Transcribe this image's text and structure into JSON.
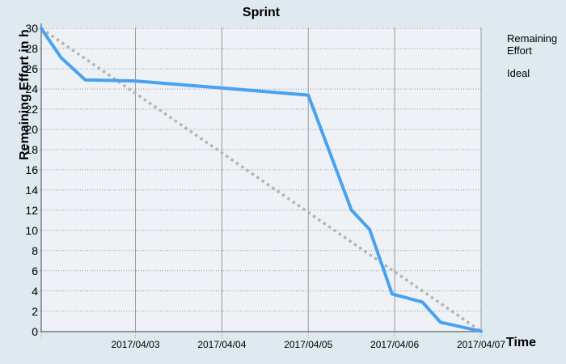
{
  "title": "Sprint",
  "colors": {
    "page_background": "#dee9f0",
    "plot_background": "#eef2f6",
    "remaining_line": "#48a2f0",
    "ideal_line": "#b4b4b4",
    "gridline": "#9a9a9a",
    "dotted_gridline": "#999999",
    "axis": "#7d7d7d",
    "text": "#000000"
  },
  "legend": {
    "position": "right",
    "items": [
      {
        "label": "Remaining Effort",
        "swatch": "solid-blue-line"
      },
      {
        "label": "Ideal",
        "swatch": "dotted-gray-line"
      }
    ]
  },
  "chart_data": {
    "type": "line",
    "title": "Sprint",
    "xlabel": "Time",
    "ylabel": "Remaining Effort in h",
    "grid": true,
    "legend_position": "right",
    "ylim": [
      0,
      30
    ],
    "y_tick_step": 2,
    "x_unit": "day of April 2017 (fractional; 3 = 2017/04/03 00:00)",
    "x_range_days": [
      1.91,
      7.0
    ],
    "x_ticks": [
      {
        "day": 3,
        "label": "2017/04/03"
      },
      {
        "day": 4,
        "label": "2017/04/04"
      },
      {
        "day": 5,
        "label": "2017/04/05"
      },
      {
        "day": 6,
        "label": "2017/04/06"
      },
      {
        "day": 7,
        "label": "2017/04/07"
      }
    ],
    "series": [
      {
        "name": "Ideal",
        "style": "dotted",
        "color": "#b4b4b4",
        "points": [
          [
            1.91,
            30
          ],
          [
            7.0,
            0
          ]
        ]
      },
      {
        "name": "Remaining Effort",
        "style": "solid",
        "color": "#48a2f0",
        "points": [
          [
            1.91,
            30.0
          ],
          [
            2.14,
            27.1
          ],
          [
            2.42,
            24.9
          ],
          [
            3.0,
            24.8
          ],
          [
            4.0,
            24.1
          ],
          [
            5.0,
            23.4
          ],
          [
            5.5,
            12.0
          ],
          [
            5.71,
            10.1
          ],
          [
            5.97,
            3.7
          ],
          [
            6.32,
            2.9
          ],
          [
            6.53,
            0.9
          ],
          [
            7.0,
            0.0
          ]
        ]
      }
    ]
  }
}
